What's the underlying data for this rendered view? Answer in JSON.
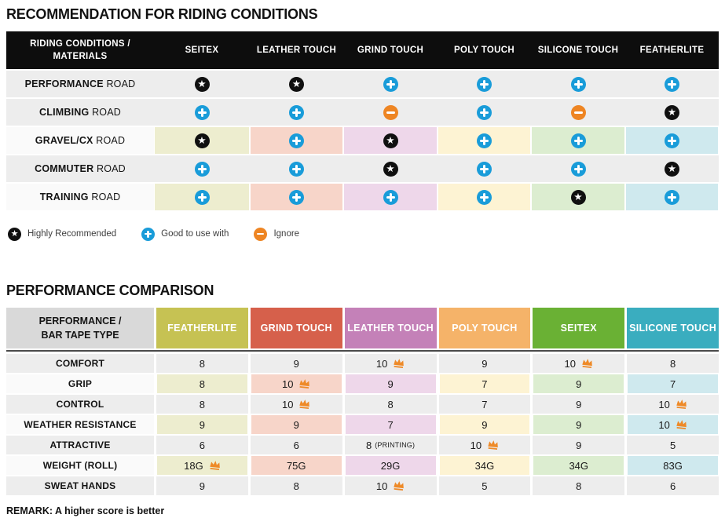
{
  "chart_data": [
    {
      "type": "table",
      "title": "RECOMMENDATION FOR RIDING CONDITIONS",
      "corner": {
        "line1": "RIDING CONDITIONS /",
        "line2": "MATERIALS"
      },
      "columns": [
        "SEITEX",
        "LEATHER TOUCH",
        "GRIND TOUCH",
        "POLY TOUCH",
        "SILICONE TOUCH",
        "FEATHERLITE"
      ],
      "column_tints": [
        "#ededcf",
        "#f7d5c9",
        "#eed7ea",
        "#fdf3d3",
        "#dcedd0",
        "#cfe9ee"
      ],
      "header_bg": "#0d0d0d",
      "rows": [
        {
          "label_bold": "PERFORMANCE",
          "label_rest": "ROAD",
          "tinted": false,
          "cells": [
            "star",
            "star",
            "plus",
            "plus",
            "plus",
            "plus"
          ]
        },
        {
          "label_bold": "CLIMBING",
          "label_rest": "ROAD",
          "tinted": false,
          "cells": [
            "plus",
            "plus",
            "minus",
            "plus",
            "minus",
            "star"
          ]
        },
        {
          "label_bold": "GRAVEL/CX",
          "label_rest": "ROAD",
          "tinted": true,
          "cells": [
            "star",
            "plus",
            "star",
            "plus",
            "plus",
            "plus"
          ]
        },
        {
          "label_bold": "COMMUTER",
          "label_rest": "ROAD",
          "tinted": false,
          "cells": [
            "plus",
            "plus",
            "star",
            "plus",
            "plus",
            "star"
          ]
        },
        {
          "label_bold": "TRAINING",
          "label_rest": "ROAD",
          "tinted": true,
          "cells": [
            "plus",
            "plus",
            "plus",
            "plus",
            "star",
            "plus"
          ]
        }
      ],
      "legend": [
        {
          "icon": "star",
          "label": "Highly Recommended"
        },
        {
          "icon": "plus",
          "label": "Good to use with"
        },
        {
          "icon": "minus",
          "label": "Ignore"
        }
      ],
      "icon_colors": {
        "star": "#101010",
        "plus": "#199cd9",
        "minus": "#ee8523"
      },
      "icon_glyphs": {
        "star": "★"
      }
    },
    {
      "type": "table",
      "title": "PERFORMANCE COMPARISON",
      "corner": {
        "line1": "PERFORMANCE /",
        "line2": "BAR TAPE TYPE"
      },
      "corner_bg": "#d9d9d9",
      "columns": [
        {
          "label": "FEATHERLITE",
          "color": "#c6c253"
        },
        {
          "label": "GRIND TOUCH",
          "color": "#d6604b"
        },
        {
          "label": "LEATHER TOUCH",
          "color": "#c481b8"
        },
        {
          "label": "POLY TOUCH",
          "color": "#f5b369"
        },
        {
          "label": "SEITEX",
          "color": "#6ab134"
        },
        {
          "label": "SILICONE TOUCH",
          "color": "#3aadbf"
        }
      ],
      "column_tints": [
        "#ededcf",
        "#f7d5c9",
        "#eed7ea",
        "#fdf3d3",
        "#dcedd0",
        "#cfe9ee"
      ],
      "crown_color": "#ee8a28",
      "rows": [
        {
          "label": "COMFORT",
          "tinted": false,
          "cells": [
            {
              "value": "8"
            },
            {
              "value": "9"
            },
            {
              "value": "10",
              "crown": true
            },
            {
              "value": "9"
            },
            {
              "value": "10",
              "crown": true
            },
            {
              "value": "8"
            }
          ]
        },
        {
          "label": "GRIP",
          "tinted": true,
          "cells": [
            {
              "value": "8"
            },
            {
              "value": "10",
              "crown": true
            },
            {
              "value": "9"
            },
            {
              "value": "7"
            },
            {
              "value": "9"
            },
            {
              "value": "7"
            }
          ]
        },
        {
          "label": "CONTROL",
          "tinted": false,
          "cells": [
            {
              "value": "8"
            },
            {
              "value": "10",
              "crown": true
            },
            {
              "value": "8"
            },
            {
              "value": "7"
            },
            {
              "value": "9"
            },
            {
              "value": "10",
              "crown": true
            }
          ]
        },
        {
          "label": "WEATHER RESISTANCE",
          "tinted": true,
          "cells": [
            {
              "value": "9"
            },
            {
              "value": "9"
            },
            {
              "value": "7"
            },
            {
              "value": "9"
            },
            {
              "value": "9"
            },
            {
              "value": "10",
              "crown": true
            }
          ]
        },
        {
          "label": "ATTRACTIVE",
          "tinted": false,
          "cells": [
            {
              "value": "6"
            },
            {
              "value": "6"
            },
            {
              "value": "8",
              "note": "(PRINTING)"
            },
            {
              "value": "10",
              "crown": true
            },
            {
              "value": "9"
            },
            {
              "value": "5"
            }
          ]
        },
        {
          "label": "WEIGHT (ROLL)",
          "tinted": true,
          "cells": [
            {
              "value": "18G",
              "crown": true
            },
            {
              "value": "75G"
            },
            {
              "value": "29G"
            },
            {
              "value": "34G"
            },
            {
              "value": "34G"
            },
            {
              "value": "83G"
            }
          ]
        },
        {
          "label": "SWEAT HANDS",
          "tinted": false,
          "cells": [
            {
              "value": "9"
            },
            {
              "value": "8"
            },
            {
              "value": "10",
              "crown": true
            },
            {
              "value": "5"
            },
            {
              "value": "8"
            },
            {
              "value": "6"
            }
          ]
        }
      ],
      "remark": "REMARK: A higher score is better"
    }
  ]
}
